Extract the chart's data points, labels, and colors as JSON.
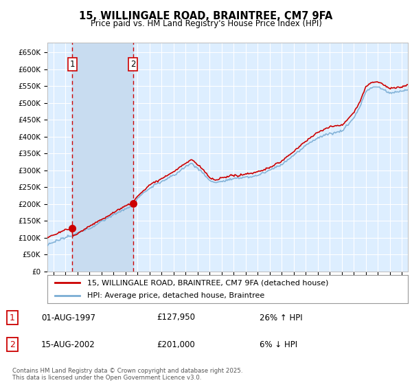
{
  "title": "15, WILLINGALE ROAD, BRAINTREE, CM7 9FA",
  "subtitle": "Price paid vs. HM Land Registry's House Price Index (HPI)",
  "sale1_date": "01-AUG-1997",
  "sale1_price": 127950,
  "sale1_label": "1",
  "sale1_pct": "26% ↑ HPI",
  "sale2_date": "15-AUG-2002",
  "sale2_price": 201000,
  "sale2_label": "2",
  "sale2_pct": "6% ↓ HPI",
  "legend_line1": "15, WILLINGALE ROAD, BRAINTREE, CM7 9FA (detached house)",
  "legend_line2": "HPI: Average price, detached house, Braintree",
  "footer": "Contains HM Land Registry data © Crown copyright and database right 2025.\nThis data is licensed under the Open Government Licence v3.0.",
  "red_color": "#cc0000",
  "blue_color": "#7aadd4",
  "bg_color": "#ddeeff",
  "shade_color": "#c8dcf0",
  "ylim": [
    0,
    680000
  ],
  "yticks": [
    0,
    50000,
    100000,
    150000,
    200000,
    250000,
    300000,
    350000,
    400000,
    450000,
    500000,
    550000,
    600000,
    650000
  ],
  "sale1_year": 1997.58,
  "sale2_year": 2002.62,
  "xmin": 1995.5,
  "xmax": 2025.5
}
